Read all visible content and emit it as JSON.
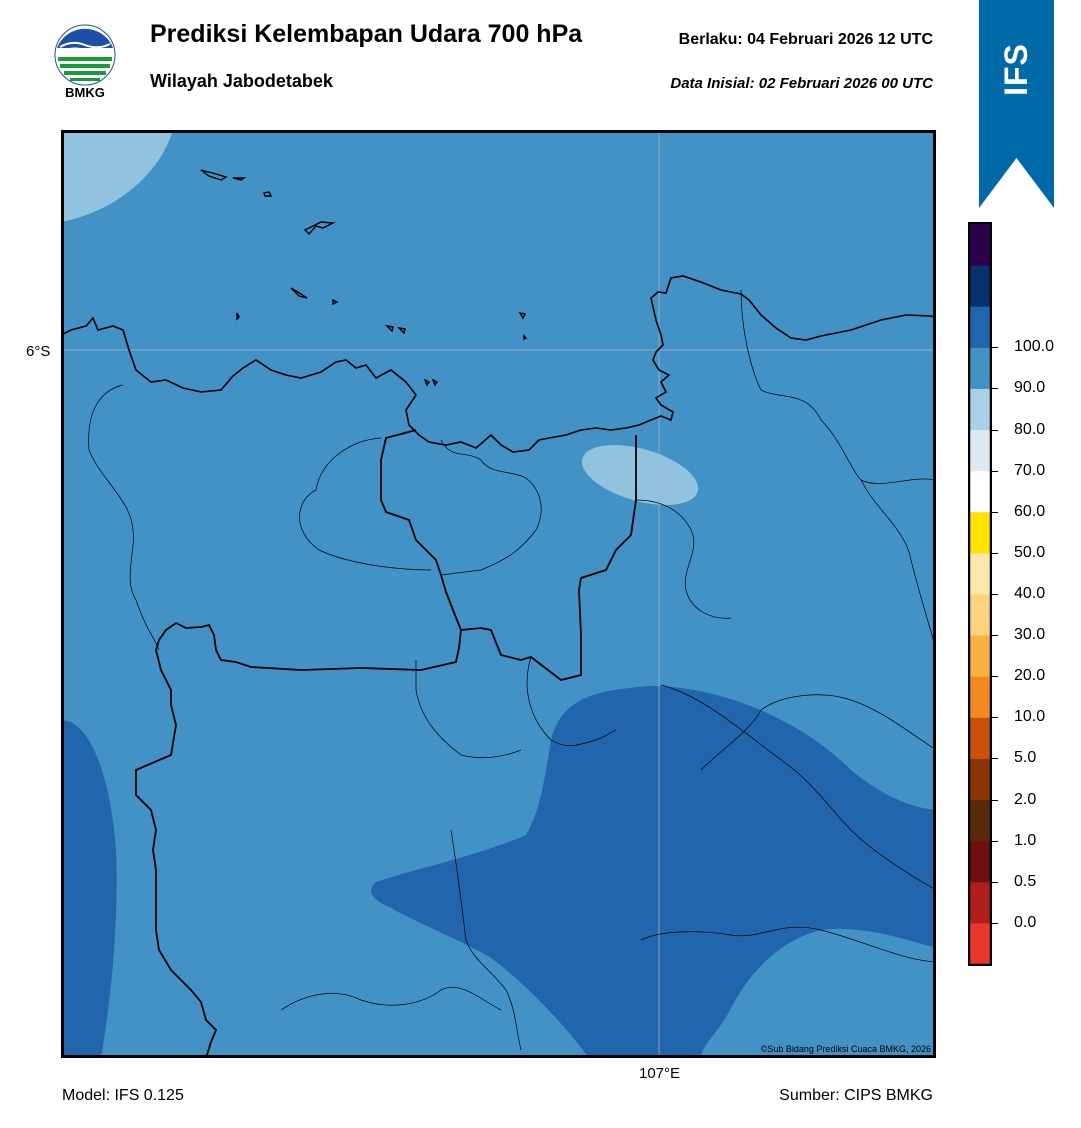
{
  "header": {
    "title": "Prediksi Kelembapan Udara 700 hPa",
    "subtitle": "Wilayah Jabodetabek",
    "valid_label": "Berlaku:  04 Februari 2026 12 UTC",
    "init_label": "Data Inisial:  02 Februari 2026 00 UTC",
    "logo_text": "BMKG"
  },
  "ribbon": {
    "text": "IFS",
    "color": "#0069a8"
  },
  "map": {
    "lat_label": "6°S",
    "lon_label": "107°E",
    "copyright": "©Sub Bidang Prediksi Cuaca BMKG, 2026"
  },
  "footer": {
    "model": "Model: IFS 0.125",
    "source": "Sumber: CIPS BMKG"
  },
  "colorbar": {
    "bins": [
      {
        "color": "#e8382c"
      },
      {
        "color": "#b01d1d"
      },
      {
        "color": "#6e0f0f"
      },
      {
        "color": "#5b2a0a"
      },
      {
        "color": "#8a3508"
      },
      {
        "color": "#c85009"
      },
      {
        "color": "#f08a1e"
      },
      {
        "color": "#fbb13f"
      },
      {
        "color": "#fdd27c"
      },
      {
        "color": "#fde8ad"
      },
      {
        "color": "#ffe200"
      },
      {
        "color": "#ffffff"
      },
      {
        "color": "#ddeaf3"
      },
      {
        "color": "#a9d1e6"
      },
      {
        "color": "#4292c6"
      },
      {
        "color": "#2166ac"
      },
      {
        "color": "#08306b"
      },
      {
        "color": "#2d004b"
      }
    ],
    "labels": [
      "0.0",
      "0.5",
      "1.0",
      "2.0",
      "5.0",
      "10.0",
      "20.0",
      "30.0",
      "40.0",
      "50.0",
      "60.0",
      "70.0",
      "80.0",
      "90.0",
      "100.0"
    ]
  },
  "field_colors": {
    "base": "#4292c6",
    "high": "#2166ac",
    "low": "#92c3de"
  }
}
